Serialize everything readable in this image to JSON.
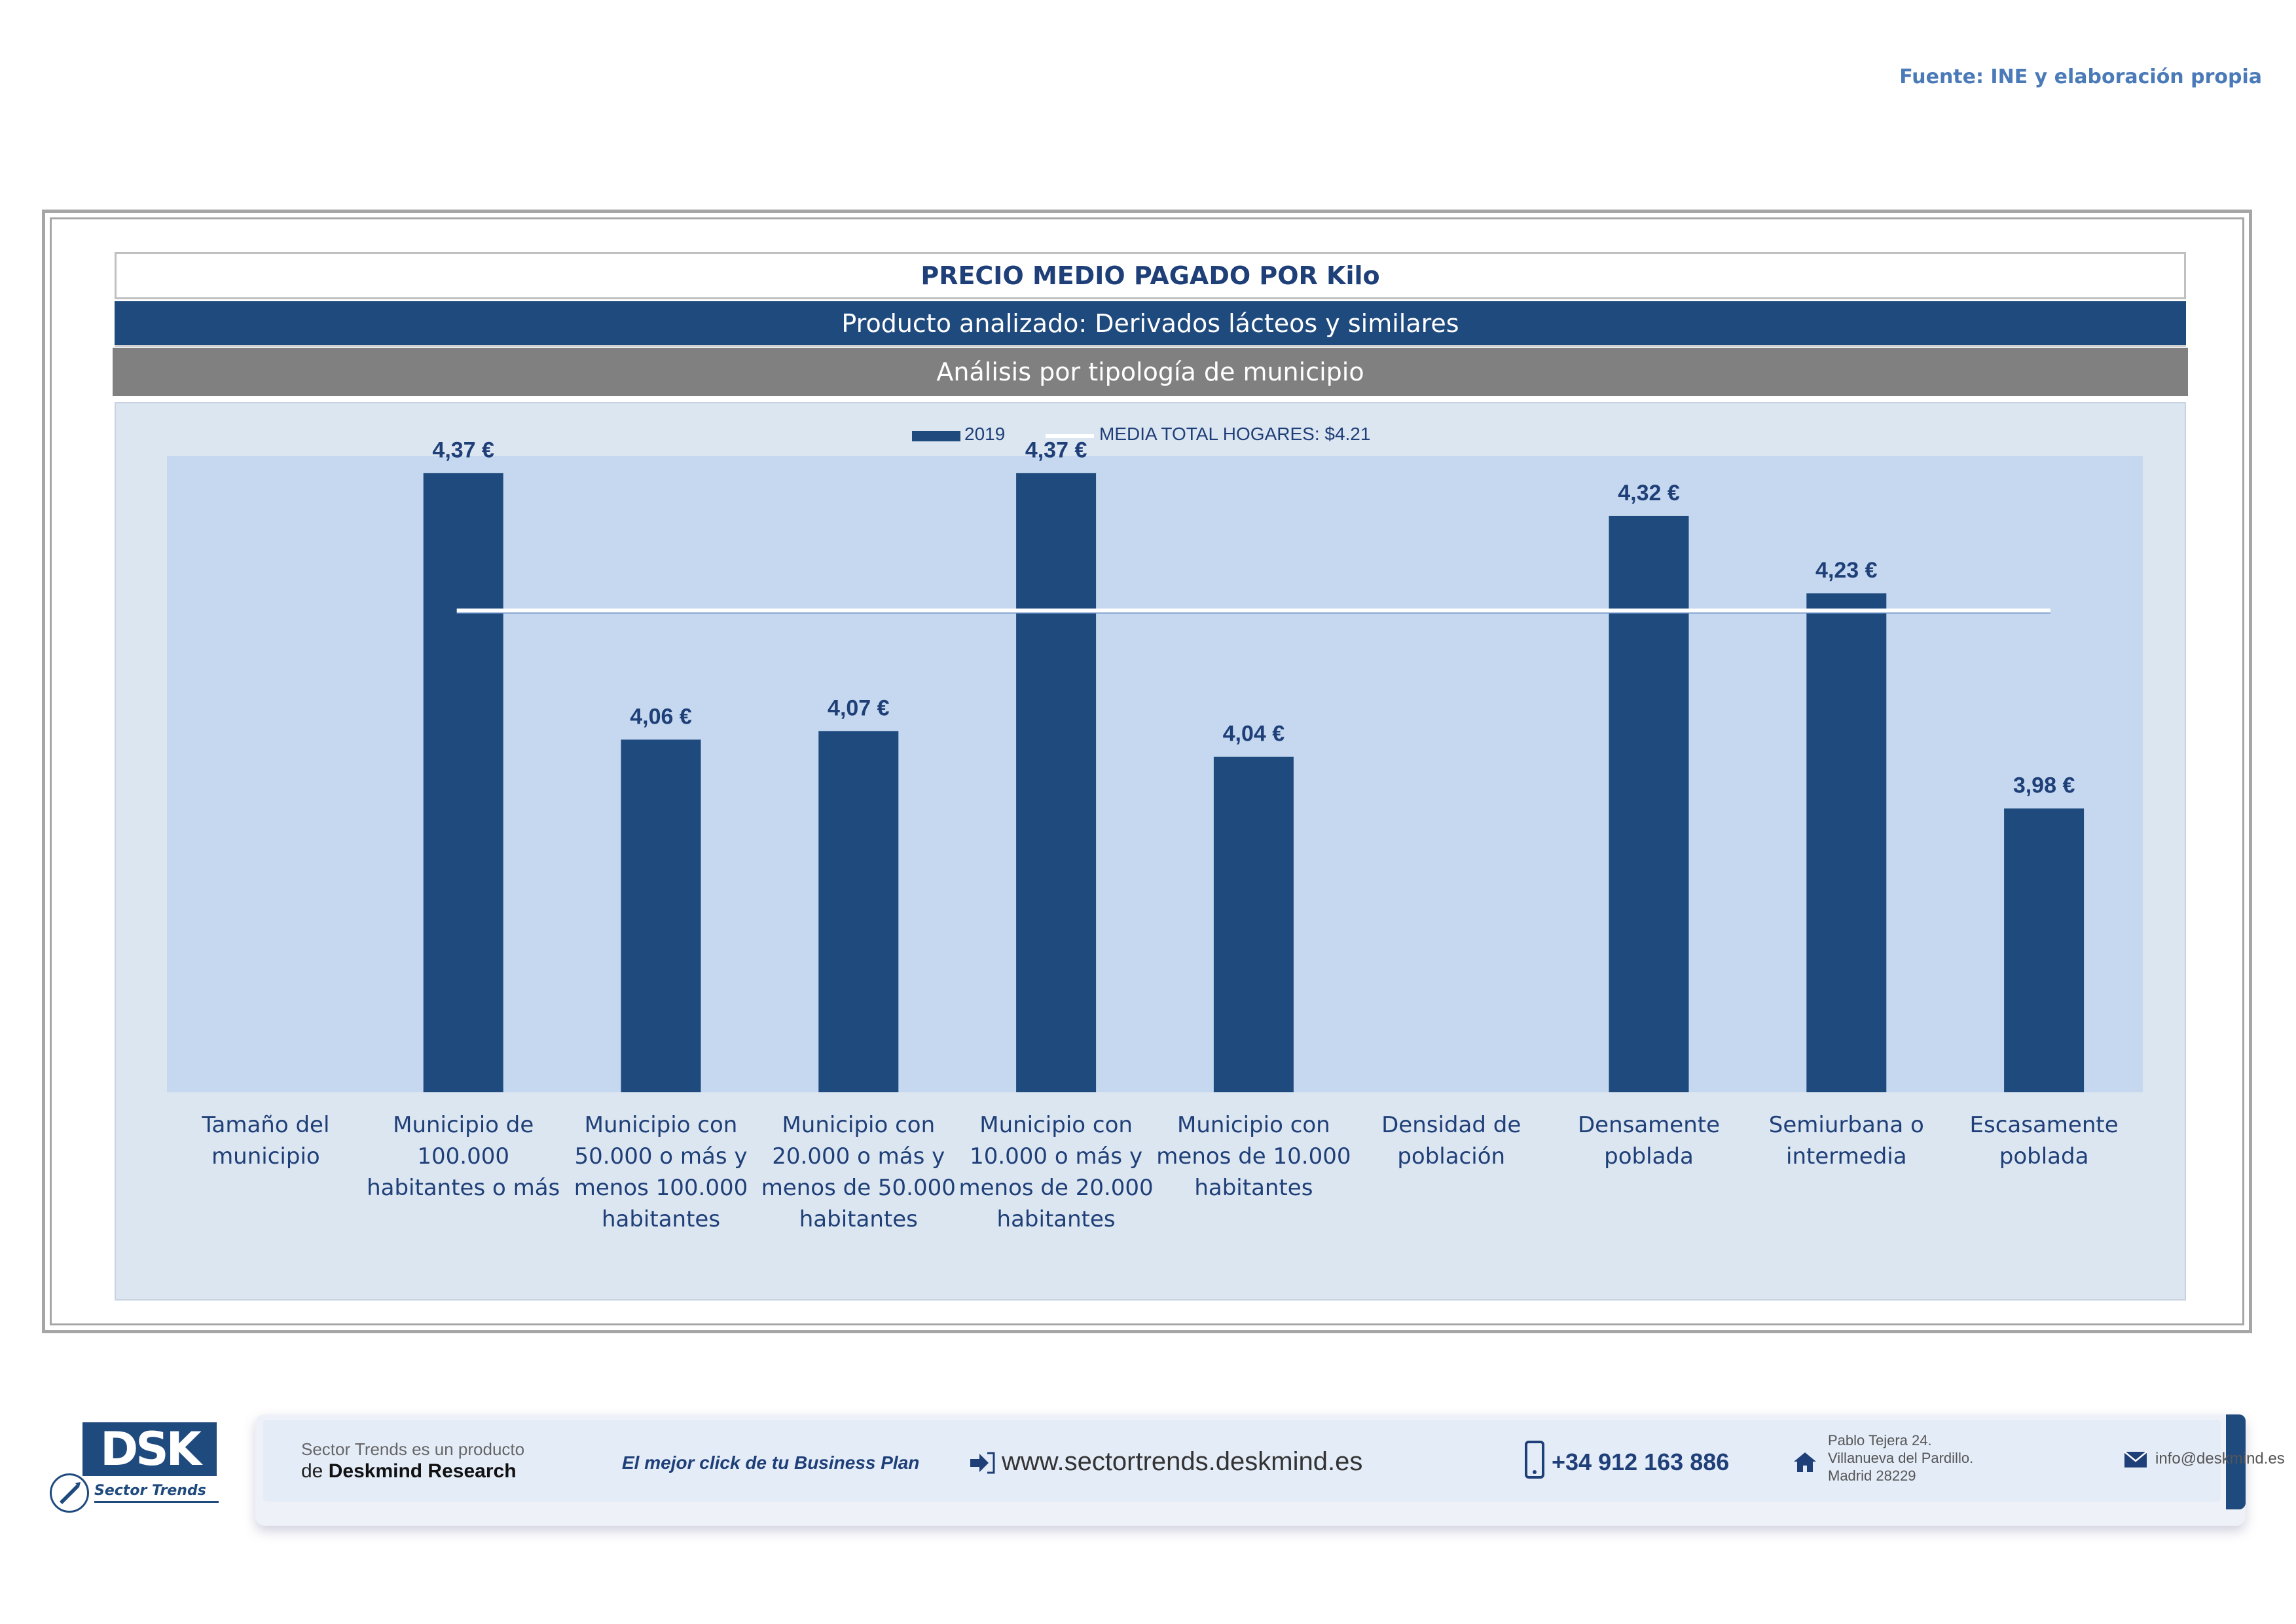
{
  "source": "Fuente: INE y elaboración propia",
  "header": {
    "title": "PRECIO MEDIO PAGADO POR Kilo",
    "product": "Producto analizado: Derivados lácteos y similares",
    "analysis": "Análisis por tipología de municipio"
  },
  "colors": {
    "bar": "#1f4a7e",
    "plot_bg": "#c5d8ef",
    "label": "#1f3f78",
    "mean_line": "#ffffff"
  },
  "chart_data": {
    "type": "bar",
    "title": "PRECIO MEDIO PAGADO POR Kilo",
    "categories": [
      "Tamaño del municipio",
      "Municipio de 100.000 habitantes o más",
      "Municipio con 50.000 o más y menos 100.000 habitantes",
      "Municipio con 20.000 o más y menos de 50.000 habitantes",
      "Municipio con 10.000 o más y menos de 20.000 habitantes",
      "Municipio con menos de 10.000 habitantes",
      "Densidad de población",
      "Densamente poblada",
      "Semiurbana o intermedia",
      "Escasamente poblada"
    ],
    "category_lines": [
      [
        "Tamaño del",
        "municipio"
      ],
      [
        "Municipio de",
        "100.000",
        "habitantes o más"
      ],
      [
        "Municipio con",
        "50.000 o más y",
        "menos 100.000",
        "habitantes"
      ],
      [
        "Municipio con",
        "20.000 o más y",
        "menos de 50.000",
        "habitantes"
      ],
      [
        "Municipio con",
        "10.000 o más y",
        "menos de 20.000",
        "habitantes"
      ],
      [
        "Municipio con",
        "menos de 10.000",
        "habitantes"
      ],
      [
        "Densidad de",
        "población"
      ],
      [
        "Densamente",
        "poblada"
      ],
      [
        "Semiurbana o",
        "intermedia"
      ],
      [
        "Escasamente",
        "poblada"
      ]
    ],
    "series": [
      {
        "name": "2019",
        "values": [
          null,
          4.37,
          4.06,
          4.07,
          4.37,
          4.04,
          null,
          4.32,
          4.23,
          3.98
        ],
        "labels": [
          "",
          "4,37 €",
          "4,06 €",
          "4,07 €",
          "4,37 €",
          "4,04 €",
          "",
          "4,32 €",
          "4,23 €",
          "3,98 €"
        ]
      }
    ],
    "reference_line": {
      "name": "MEDIA TOTAL  HOGARES:",
      "value": 4.21,
      "label": "$4.21"
    },
    "legend": {
      "series_label": "2019",
      "line_label": "MEDIA TOTAL  HOGARES:   $4.21",
      "position": "top-center"
    },
    "ylim": [
      3.65,
      4.39
    ],
    "xlabel": "",
    "ylabel": ""
  },
  "footer": {
    "logo_text": "DSK",
    "logo_sub": "Sector Trends",
    "brand_line1": "Sector Trends es un producto",
    "brand_line2_prefix": "de ",
    "brand_line2_name": "Deskmind Research",
    "slogan": "El mejor click de tu Business Plan",
    "website": "www.sectortrends.deskmind.es",
    "phone": "+34 912 163 886",
    "address_line1": "Pablo Tejera 24.",
    "address_line2": "Villanueva del Pardillo.",
    "address_line3": "Madrid 28229",
    "email": "info@deskmind.es"
  }
}
